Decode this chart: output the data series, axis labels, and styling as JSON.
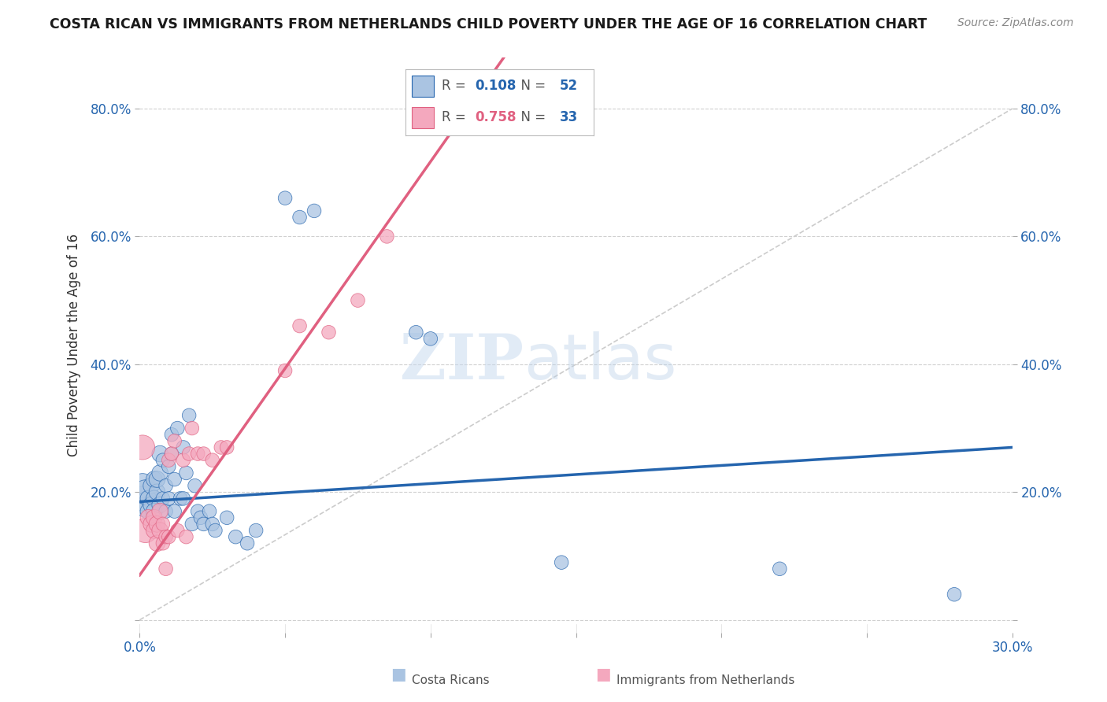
{
  "title": "COSTA RICAN VS IMMIGRANTS FROM NETHERLANDS CHILD POVERTY UNDER THE AGE OF 16 CORRELATION CHART",
  "source": "Source: ZipAtlas.com",
  "ylabel": "Child Poverty Under the Age of 16",
  "xlim": [
    0.0,
    0.3
  ],
  "ylim": [
    -0.02,
    0.88
  ],
  "ytick_vals": [
    0.0,
    0.2,
    0.4,
    0.6,
    0.8
  ],
  "ytick_labels": [
    "",
    "20.0%",
    "40.0%",
    "60.0%",
    "80.0%"
  ],
  "xtick_vals": [
    0.0,
    0.05,
    0.1,
    0.15,
    0.2,
    0.25,
    0.3
  ],
  "xtick_labels": [
    "0.0%",
    "",
    "",
    "",
    "",
    "",
    "30.0%"
  ],
  "blue_R": 0.108,
  "blue_N": 52,
  "pink_R": 0.758,
  "pink_N": 33,
  "blue_color": "#aac4e2",
  "pink_color": "#f4a8be",
  "blue_line_color": "#2565ae",
  "pink_line_color": "#e06080",
  "blue_scatter": [
    [
      0.001,
      0.19
    ],
    [
      0.001,
      0.21
    ],
    [
      0.002,
      0.18
    ],
    [
      0.002,
      0.2
    ],
    [
      0.003,
      0.19
    ],
    [
      0.003,
      0.17
    ],
    [
      0.004,
      0.21
    ],
    [
      0.004,
      0.18
    ],
    [
      0.005,
      0.22
    ],
    [
      0.005,
      0.19
    ],
    [
      0.005,
      0.17
    ],
    [
      0.006,
      0.2
    ],
    [
      0.006,
      0.22
    ],
    [
      0.007,
      0.18
    ],
    [
      0.007,
      0.26
    ],
    [
      0.007,
      0.23
    ],
    [
      0.008,
      0.19
    ],
    [
      0.008,
      0.25
    ],
    [
      0.009,
      0.17
    ],
    [
      0.009,
      0.21
    ],
    [
      0.01,
      0.19
    ],
    [
      0.01,
      0.24
    ],
    [
      0.011,
      0.26
    ],
    [
      0.011,
      0.29
    ],
    [
      0.012,
      0.22
    ],
    [
      0.012,
      0.17
    ],
    [
      0.013,
      0.3
    ],
    [
      0.014,
      0.19
    ],
    [
      0.015,
      0.27
    ],
    [
      0.015,
      0.19
    ],
    [
      0.016,
      0.23
    ],
    [
      0.017,
      0.32
    ],
    [
      0.018,
      0.15
    ],
    [
      0.019,
      0.21
    ],
    [
      0.02,
      0.17
    ],
    [
      0.021,
      0.16
    ],
    [
      0.022,
      0.15
    ],
    [
      0.024,
      0.17
    ],
    [
      0.025,
      0.15
    ],
    [
      0.026,
      0.14
    ],
    [
      0.03,
      0.16
    ],
    [
      0.033,
      0.13
    ],
    [
      0.037,
      0.12
    ],
    [
      0.04,
      0.14
    ],
    [
      0.05,
      0.66
    ],
    [
      0.055,
      0.63
    ],
    [
      0.06,
      0.64
    ],
    [
      0.095,
      0.45
    ],
    [
      0.1,
      0.44
    ],
    [
      0.145,
      0.09
    ],
    [
      0.22,
      0.08
    ],
    [
      0.28,
      0.04
    ]
  ],
  "pink_scatter": [
    [
      0.001,
      0.27
    ],
    [
      0.002,
      0.14
    ],
    [
      0.003,
      0.16
    ],
    [
      0.004,
      0.15
    ],
    [
      0.005,
      0.14
    ],
    [
      0.005,
      0.16
    ],
    [
      0.006,
      0.12
    ],
    [
      0.006,
      0.15
    ],
    [
      0.007,
      0.17
    ],
    [
      0.007,
      0.14
    ],
    [
      0.008,
      0.12
    ],
    [
      0.008,
      0.15
    ],
    [
      0.009,
      0.08
    ],
    [
      0.009,
      0.13
    ],
    [
      0.01,
      0.13
    ],
    [
      0.01,
      0.25
    ],
    [
      0.011,
      0.26
    ],
    [
      0.012,
      0.28
    ],
    [
      0.013,
      0.14
    ],
    [
      0.015,
      0.25
    ],
    [
      0.016,
      0.13
    ],
    [
      0.017,
      0.26
    ],
    [
      0.018,
      0.3
    ],
    [
      0.02,
      0.26
    ],
    [
      0.022,
      0.26
    ],
    [
      0.025,
      0.25
    ],
    [
      0.028,
      0.27
    ],
    [
      0.03,
      0.27
    ],
    [
      0.05,
      0.39
    ],
    [
      0.055,
      0.46
    ],
    [
      0.065,
      0.45
    ],
    [
      0.075,
      0.5
    ],
    [
      0.085,
      0.6
    ]
  ],
  "watermark_zip": "ZIP",
  "watermark_atlas": "atlas",
  "background_color": "#ffffff",
  "grid_color": "#d0d0d0",
  "diag_color": "#cccccc"
}
